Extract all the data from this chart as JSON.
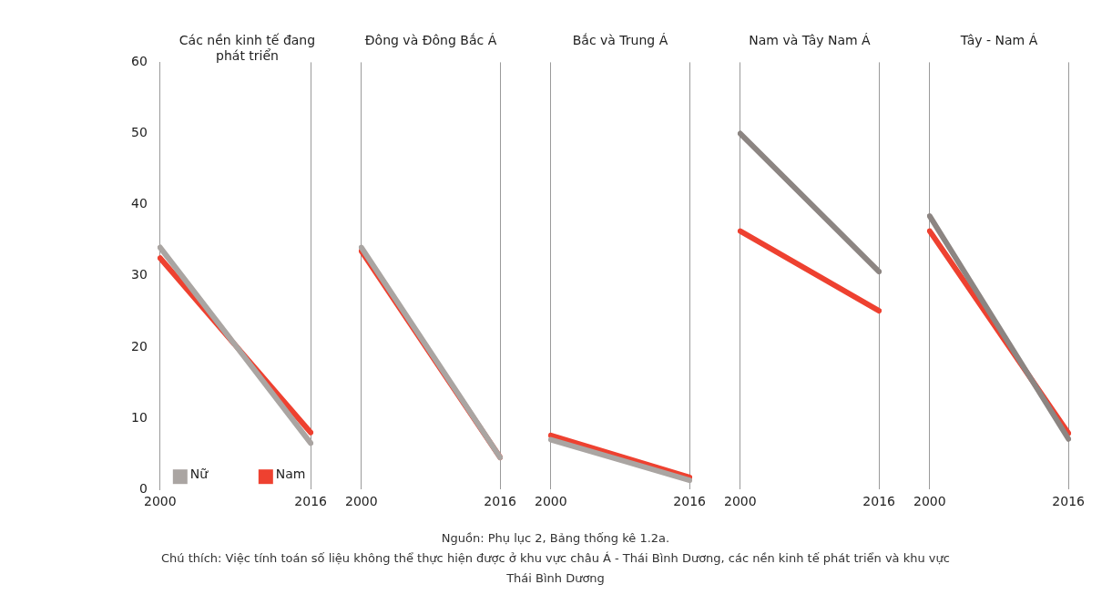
{
  "chart_data": [
    {
      "type": "line",
      "title": "Các nền kinh tế đang phát triển",
      "categories": [
        "2000",
        "2016"
      ],
      "ylim": [
        0,
        60
      ],
      "yticks": [
        0,
        10,
        20,
        30,
        40,
        50,
        60
      ],
      "grid": "x",
      "legend": "bottom left",
      "marker": "none",
      "series": [
        {
          "name": "Nữ",
          "color": "#aaa5a2",
          "values": [
            34,
            6.5
          ]
        },
        {
          "name": "Nam",
          "color": "#ee4130",
          "values": [
            32.5,
            8
          ]
        }
      ],
      "annotations": [
        "Nguồn: Phụ lục 2, Bảng thống kê 1.2a.",
        "Chú thích: Việc tính toán số liệu không thể thực hiện được ở khu vực châu Á - Thái Bình Dương, các nền kinh tế phát triển và khu vực Thái Bình Dương"
      ]
    },
    {
      "type": "line",
      "title": "Đông và Đông Bắc Á",
      "categories": [
        "2000",
        "2016"
      ],
      "ylim": [
        0,
        60
      ],
      "yticks": [
        0,
        10,
        20,
        30,
        40,
        50,
        60
      ],
      "grid": "x",
      "tick_labels": "x",
      "marker": "none",
      "series": [
        {
          "color": "#aaa5a2",
          "values": [
            34,
            4.5
          ]
        },
        {
          "color": "#ee4130",
          "values": [
            33.5,
            4.5
          ]
        }
      ]
    },
    {
      "type": "line",
      "title": "Bắc và Trung Á",
      "categories": [
        "2000",
        "2016"
      ],
      "ylim": [
        0,
        60
      ],
      "yticks": [
        0,
        10,
        20,
        30,
        40,
        50,
        60
      ],
      "grid": "x",
      "tick_labels": "x",
      "marker": "none",
      "series": [
        {
          "color": "#aaa5a2",
          "values": [
            7,
            1.3
          ]
        },
        {
          "color": "#ee4130",
          "values": [
            7.6,
            1.7
          ]
        }
      ]
    },
    {
      "type": "line",
      "title": "Nam và Tây Nam Á",
      "categories": [
        "2000",
        "2016"
      ],
      "ylim": [
        0,
        60
      ],
      "yticks": [
        0,
        10,
        20,
        30,
        40,
        50,
        60
      ],
      "grid": "x",
      "tick_labels": "x",
      "marker": "none",
      "series": [
        {
          "color": "#8c8582",
          "values": [
            50,
            30.6
          ]
        },
        {
          "color": "#ee4130",
          "values": [
            36.3,
            25.1
          ]
        }
      ]
    },
    {
      "type": "line",
      "title": "Tây - Nam Á",
      "categories": [
        "2000",
        "2016"
      ],
      "ylim": [
        0,
        60
      ],
      "yticks": [
        0,
        10,
        20,
        30,
        40,
        50,
        60
      ],
      "grid": "x",
      "tick_labels": "x",
      "marker": "none",
      "series": [
        {
          "color": "#8c8582",
          "values": [
            38.4,
            7.1
          ]
        },
        {
          "color": "#ee4130",
          "values": [
            36.3,
            7.9
          ]
        }
      ]
    }
  ]
}
